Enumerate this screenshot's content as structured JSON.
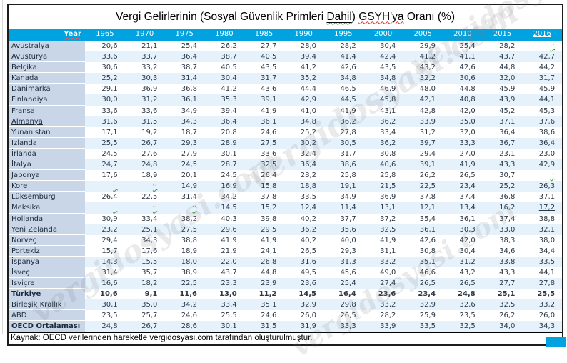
{
  "title": {
    "part1": "Vergi Gelirlerinin (Sosyal Güvenlik Primleri ",
    "dahil": "Dahil",
    "part2": ") ",
    "gsyh": "GSYH'ya",
    "part3": " Oranı (%)"
  },
  "no_data_mark": "ʻʻ",
  "source": "Kaynak: OECD verilerinden hareketle vergidosyasi.com tarafından oluşturulmuştur.",
  "watermark": "vergidosyasi.com",
  "colors": {
    "header_bg": "#00A3E0",
    "label_bg": "#C8D6E8",
    "band_bg": "#E6F2FB",
    "accent_box": "#00A3E0"
  },
  "chart_data": {
    "type": "table",
    "title": "Vergi Gelirlerinin (Sosyal Güvenlik Primleri Dahil) GSYH'ya Oranı (%)",
    "corner_label": "Year",
    "categories": [
      "1965",
      "1970",
      "1975",
      "1980",
      "1985",
      "1990",
      "1995",
      "2000",
      "2005",
      "2010",
      "2015",
      "2016"
    ],
    "rows": [
      {
        "label": "Avustralya",
        "shaded": false,
        "values": [
          "20,6",
          "21,1",
          "25,4",
          "26,2",
          "27,7",
          "28,0",
          "28,2",
          "30,4",
          "29,9",
          "25,4",
          "28,2",
          null
        ]
      },
      {
        "label": "Avusturya",
        "shaded": true,
        "values": [
          "33,6",
          "33,7",
          "36,4",
          "38,7",
          "40,5",
          "39,4",
          "41,4",
          "42,4",
          "41,2",
          "41,1",
          "43,7",
          "42,7"
        ]
      },
      {
        "label": "Belçika",
        "shaded": false,
        "values": [
          "30,6",
          "33,2",
          "38,7",
          "40,5",
          "43,5",
          "41,2",
          "42,6",
          "43,5",
          "43,2",
          "42,6",
          "44,8",
          "44,2"
        ]
      },
      {
        "label": "Kanada",
        "shaded": true,
        "values": [
          "25,2",
          "30,3",
          "31,4",
          "30,4",
          "31,7",
          "35,2",
          "34,8",
          "34,8",
          "32,2",
          "30,6",
          "32,0",
          "31,7"
        ]
      },
      {
        "label": "Danimarka",
        "shaded": false,
        "values": [
          "29,1",
          "36,9",
          "36,8",
          "41,2",
          "43,6",
          "44,4",
          "46,5",
          "46,9",
          "48,0",
          "44,8",
          "45,9",
          "45,9"
        ]
      },
      {
        "label": "Finlandiya",
        "shaded": true,
        "values": [
          "30,0",
          "31,2",
          "36,1",
          "35,3",
          "39,1",
          "42,9",
          "44,5",
          "45,8",
          "42,1",
          "40,8",
          "43,9",
          "44,1"
        ]
      },
      {
        "label": "Fransa",
        "shaded": false,
        "values": [
          "33,6",
          "33,6",
          "34,9",
          "39,4",
          "41,9",
          "41,0",
          "41,9",
          "43,1",
          "42,8",
          "42,0",
          "45,2",
          "45,3"
        ]
      },
      {
        "label": "Almanya",
        "shaded": true,
        "label_underline": true,
        "values": [
          "31,6",
          "31,5",
          "34,3",
          "36,4",
          "36,1",
          "34,8",
          "36,2",
          "36,2",
          "33,9",
          "35,0",
          "37,1",
          "37,6"
        ]
      },
      {
        "label": "Yunanistan",
        "shaded": false,
        "values": [
          "17,1",
          "19,2",
          "18,7",
          "20,8",
          "24,6",
          "25,2",
          "27,8",
          "33,4",
          "31,2",
          "32,0",
          "36,4",
          "38,6"
        ]
      },
      {
        "label": "İzlanda",
        "shaded": true,
        "values": [
          "25,5",
          "26,7",
          "29,3",
          "28,9",
          "27,5",
          "30,2",
          "30,5",
          "36,2",
          "39,7",
          "33,3",
          "36,7",
          "36,4"
        ]
      },
      {
        "label": "İrlanda",
        "shaded": false,
        "values": [
          "24,5",
          "27,6",
          "27,9",
          "30,1",
          "33,6",
          "32,4",
          "31,7",
          "30,8",
          "29,4",
          "27,0",
          "23,1",
          "23,0"
        ]
      },
      {
        "label": "İtalya",
        "shaded": true,
        "values": [
          "24,7",
          "24,8",
          "24,5",
          "28,7",
          "32,5",
          "36,4",
          "38,6",
          "40,6",
          "39,1",
          "41,9",
          "43,3",
          "42,9"
        ]
      },
      {
        "label": "Japonya",
        "shaded": false,
        "values": [
          "17,6",
          "18,9",
          "20,1",
          "24,5",
          "26,4",
          "28,2",
          "25,8",
          "25,8",
          "26,2",
          "26,5",
          "30,7",
          null
        ]
      },
      {
        "label": "Kore",
        "shaded": true,
        "values": [
          null,
          null,
          "14,9",
          "16,9",
          "15,8",
          "18,8",
          "19,1",
          "21,5",
          "22,5",
          "23,4",
          "25,2",
          "26,3"
        ]
      },
      {
        "label": "Lüksemburg",
        "shaded": false,
        "values": [
          "26,4",
          "22,5",
          "31,4",
          "34,2",
          "37,8",
          "33,5",
          "34,9",
          "36,9",
          "37,8",
          "37,4",
          "36,8",
          "37,1"
        ]
      },
      {
        "label": "Meksika",
        "shaded": true,
        "u": [
          11
        ],
        "values": [
          null,
          null,
          null,
          "14,5",
          "15,2",
          "12,4",
          "11,4",
          "13,1",
          "12,1",
          "13,4",
          "16,2",
          "17,2"
        ]
      },
      {
        "label": "Hollanda",
        "shaded": false,
        "values": [
          "30,9",
          "33,4",
          "38,2",
          "40,3",
          "39,8",
          "40,2",
          "37,7",
          "37,2",
          "35,4",
          "36,1",
          "37,4",
          "38,8"
        ]
      },
      {
        "label": "Yeni Zelanda",
        "shaded": true,
        "values": [
          "23,2",
          "25,1",
          "27,5",
          "29,6",
          "29,5",
          "36,2",
          "35,6",
          "32,5",
          "36,1",
          "30,3",
          "33,0",
          "32,1"
        ]
      },
      {
        "label": "Norveç",
        "shaded": false,
        "values": [
          "29,4",
          "34,3",
          "38,8",
          "41,9",
          "41,9",
          "40,2",
          "40,0",
          "41,9",
          "42,6",
          "42,0",
          "38,3",
          "38,0"
        ]
      },
      {
        "label": "Portekiz",
        "shaded": false,
        "values": [
          "15,7",
          "17,6",
          "18,9",
          "21,9",
          "24,1",
          "26,5",
          "29,3",
          "31,1",
          "30,8",
          "30,4",
          "34,6",
          "34,4"
        ]
      },
      {
        "label": "İspanya",
        "shaded": true,
        "values": [
          "14,3",
          "15,5",
          "18,0",
          "22,0",
          "26,8",
          "31,6",
          "31,3",
          "33,2",
          "35,1",
          "31,2",
          "33,8",
          "33,5"
        ]
      },
      {
        "label": "İsveç",
        "shaded": false,
        "values": [
          "31,4",
          "35,7",
          "38,9",
          "43,7",
          "44,8",
          "49,5",
          "45,6",
          "49,0",
          "46,6",
          "43,2",
          "43,3",
          "44,1"
        ]
      },
      {
        "label": "İsviçre",
        "shaded": true,
        "values": [
          "16,6",
          "18,2",
          "22,5",
          "23,3",
          "23,9",
          "23,6",
          "25,4",
          "27,4",
          "26,5",
          "26,5",
          "27,7",
          "27,8"
        ]
      },
      {
        "label": "Türkiye",
        "shaded": false,
        "bold": true,
        "values": [
          "10,6",
          "9,1",
          "11,6",
          "13,0",
          "11,2",
          "14,5",
          "16,4",
          "23,6",
          "23,4",
          "24,8",
          "25,1",
          "25,5"
        ]
      },
      {
        "label": "Birleşik Krallık",
        "shaded": true,
        "values": [
          "30,1",
          "35,0",
          "34,2",
          "33,4",
          "35,1",
          "32,9",
          "29,8",
          "33,2",
          "32,9",
          "32,6",
          "32,5",
          "33,2"
        ]
      },
      {
        "label": "ABD",
        "shaded": false,
        "values": [
          "23,5",
          "25,7",
          "24,6",
          "25,5",
          "24,6",
          "26,0",
          "26,5",
          "28,2",
          "25,9",
          "23,5",
          "26,2",
          "26,0"
        ]
      },
      {
        "label": "OECD Ortalaması",
        "shaded": true,
        "bold_label": true,
        "label_underline": true,
        "u": [
          11
        ],
        "values": [
          "24,8",
          "26,7",
          "28,6",
          "30,1",
          "31,5",
          "31,9",
          "33,3",
          "33,9",
          "33,5",
          "32,5",
          "34,0",
          "34,3"
        ]
      }
    ]
  }
}
